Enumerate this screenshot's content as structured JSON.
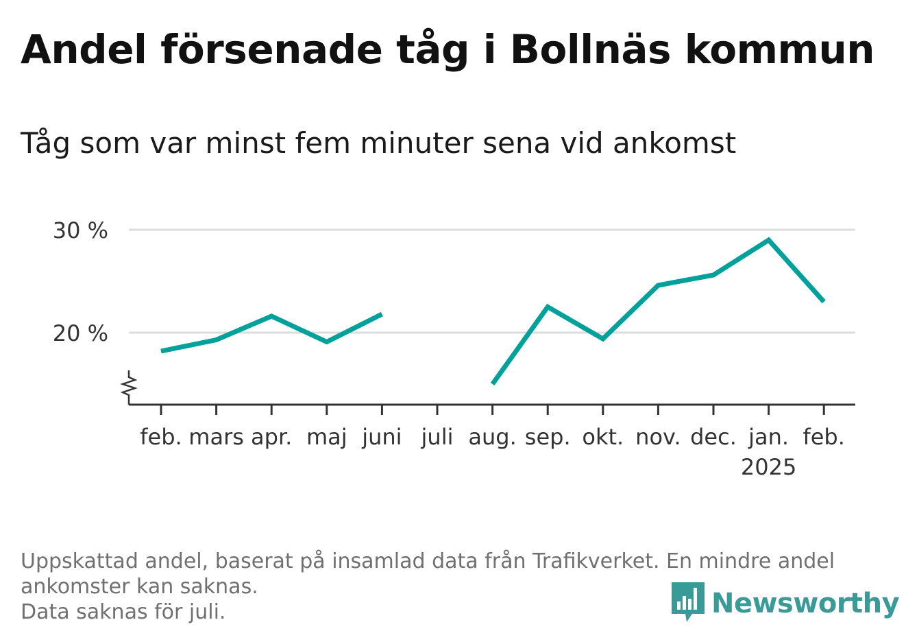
{
  "title": "Andel försenade tåg i Bollnäs kommun",
  "subtitle": "Tåg som var minst fem minuter sena vid ankomst",
  "chart_data": {
    "type": "line",
    "categories": [
      "feb.",
      "mars",
      "apr.",
      "maj",
      "juni",
      "juli",
      "aug.",
      "sep.",
      "okt.",
      "nov.",
      "dec.",
      "jan.",
      "feb."
    ],
    "year_labels": [
      "",
      "",
      "",
      "",
      "",
      "",
      "",
      "",
      "",
      "",
      "",
      "2025",
      ""
    ],
    "series": [
      {
        "values": [
          18.2,
          19.3,
          21.6,
          19.1,
          21.8,
          null,
          15.0,
          22.5,
          19.4,
          24.6,
          25.6,
          29.0,
          23.0
        ]
      }
    ],
    "y_ticks": [
      20,
      30
    ],
    "y_tick_labels": [
      "20 %",
      "30 %"
    ],
    "ylim": [
      13.0,
      31.0
    ],
    "y_axis_break": true,
    "grid": true,
    "line_color": "#00a19a"
  },
  "footnote": {
    "line1": "Uppskattad andel, baserat på insamlad data från Trafikverket. En mindre andel",
    "line2": "ankomster kan saknas.",
    "line3": "Data saknas för juli."
  },
  "logo": {
    "text": "Newsworthy",
    "color": "#3a9a98",
    "icon": "bar-chart-speech-bubble-icon"
  }
}
